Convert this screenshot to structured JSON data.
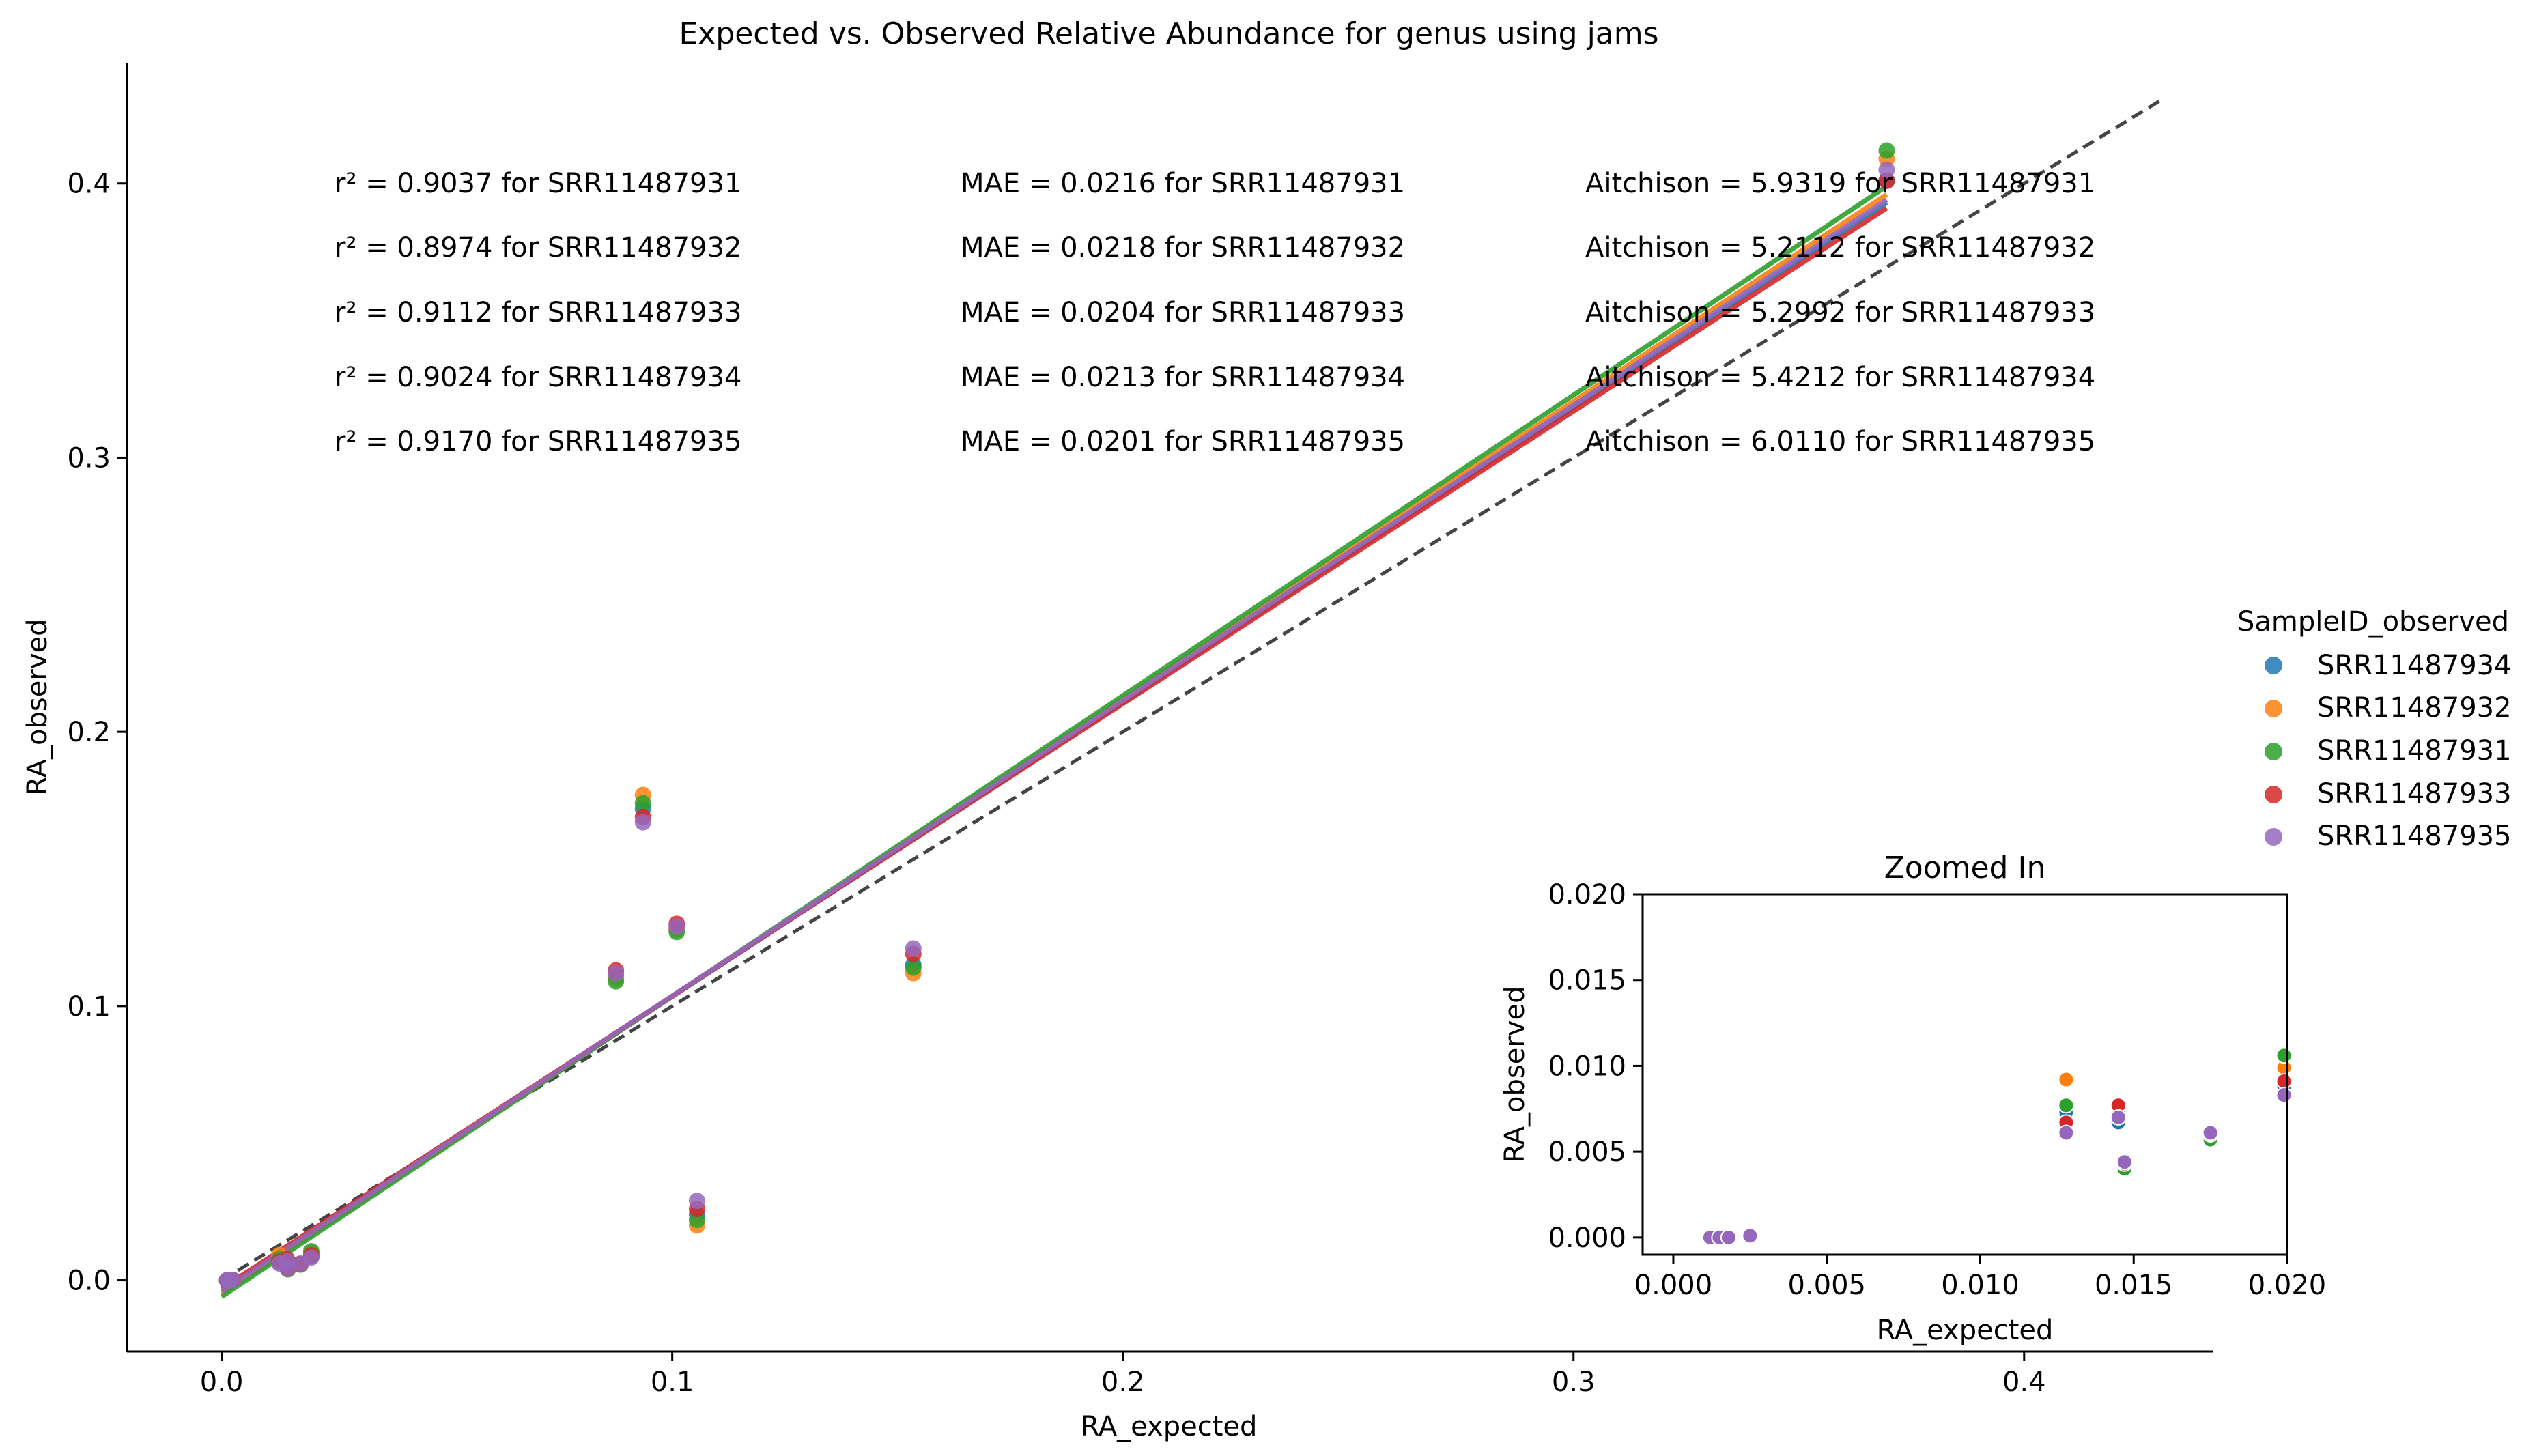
{
  "chart_data": {
    "type": "scatter",
    "title": "Expected vs. Observed Relative Abundance for genus using jams",
    "xlabel": "RA_expected",
    "ylabel": "RA_observed",
    "xlim": [
      -0.021,
      0.442
    ],
    "ylim": [
      -0.026,
      0.444
    ],
    "xticks": [
      "0.0",
      "0.1",
      "0.2",
      "0.3",
      "0.4"
    ],
    "yticks": [
      "0.0",
      "0.1",
      "0.2",
      "0.3",
      "0.4"
    ],
    "grid": false,
    "legend": {
      "title": "SampleID_observed",
      "placement": "right",
      "entries": [
        "SRR11487934",
        "SRR11487932",
        "SRR11487931",
        "SRR11487933",
        "SRR11487935"
      ]
    },
    "identity_line": {
      "from": [
        0,
        0
      ],
      "to": [
        0.43,
        0.43
      ],
      "color": "#444444",
      "style": "dashed"
    },
    "colors": {
      "SRR11487934": "#1f77b4",
      "SRR11487932": "#ff7f0e",
      "SRR11487931": "#2ca02c",
      "SRR11487933": "#d62728",
      "SRR11487935": "#9467bd"
    },
    "metrics": {
      "r2": [
        "r² = 0.9037 for SRR11487931",
        "r² = 0.8974 for SRR11487932",
        "r² = 0.9112 for SRR11487933",
        "r² = 0.9024 for SRR11487934",
        "r² = 0.9170 for SRR11487935"
      ],
      "mae": [
        "MAE = 0.0216 for SRR11487931",
        "MAE = 0.0218 for SRR11487932",
        "MAE = 0.0204 for SRR11487933",
        "MAE = 0.0213 for SRR11487934",
        "MAE = 0.0201 for SRR11487935"
      ],
      "aitchison": [
        "Aitchison = 5.9319 for SRR11487931",
        "Aitchison = 5.2112 for SRR11487932",
        "Aitchison = 5.2992 for SRR11487933",
        "Aitchison = 5.4212 for SRR11487934",
        "Aitchison = 6.0110 for SRR11487935"
      ]
    },
    "x_expected": [
      0.0012,
      0.0015,
      0.0018,
      0.0025,
      0.0128,
      0.0145,
      0.0147,
      0.0175,
      0.0199,
      0.0875,
      0.0935,
      0.101,
      0.1055,
      0.1535,
      0.3695
    ],
    "series": [
      {
        "name": "SRR11487934",
        "values": [
          0.0,
          0.0,
          0.0,
          0.0001,
          0.0073,
          0.0067,
          0.0043,
          0.006,
          0.0088,
          0.111,
          0.172,
          0.128,
          0.024,
          0.115,
          0.401
        ],
        "fit": [
          [
            0.0,
            -0.004
          ],
          [
            0.3695,
            0.393
          ]
        ]
      },
      {
        "name": "SRR11487932",
        "values": [
          0.0,
          0.0,
          0.0,
          0.0001,
          0.0092,
          0.0073,
          0.0042,
          0.0058,
          0.0099,
          0.11,
          0.177,
          0.128,
          0.02,
          0.112,
          0.409
        ],
        "fit": [
          [
            0.0,
            -0.005
          ],
          [
            0.3695,
            0.396
          ]
        ]
      },
      {
        "name": "SRR11487931",
        "values": [
          0.0,
          0.0,
          0.0,
          0.0001,
          0.0077,
          0.0072,
          0.004,
          0.0057,
          0.0106,
          0.109,
          0.174,
          0.127,
          0.022,
          0.114,
          0.412
        ],
        "fit": [
          [
            0.0,
            -0.006
          ],
          [
            0.3695,
            0.399
          ]
        ]
      },
      {
        "name": "SRR11487933",
        "values": [
          0.0,
          0.0,
          0.0,
          0.0001,
          0.0067,
          0.0077,
          0.0043,
          0.006,
          0.0091,
          0.113,
          0.169,
          0.13,
          0.026,
          0.119,
          0.401
        ],
        "fit": [
          [
            0.0,
            -0.003
          ],
          [
            0.3695,
            0.391
          ]
        ]
      },
      {
        "name": "SRR11487935",
        "values": [
          0.0,
          0.0,
          0.0,
          0.0001,
          0.0061,
          0.007,
          0.0044,
          0.0061,
          0.0083,
          0.112,
          0.167,
          0.129,
          0.029,
          0.121,
          0.405
        ],
        "fit": [
          [
            0.0,
            -0.004
          ],
          [
            0.3695,
            0.394
          ]
        ]
      }
    ],
    "inset": {
      "title": "Zoomed In",
      "xlabel": "RA_expected",
      "ylabel": "RA_observed",
      "xlim": [
        -0.001,
        0.02
      ],
      "ylim": [
        -0.001,
        0.02
      ],
      "xticks": [
        "0.000",
        "0.005",
        "0.010",
        "0.015",
        "0.020"
      ],
      "yticks": [
        "0.000",
        "0.005",
        "0.010",
        "0.015",
        "0.020"
      ]
    }
  }
}
